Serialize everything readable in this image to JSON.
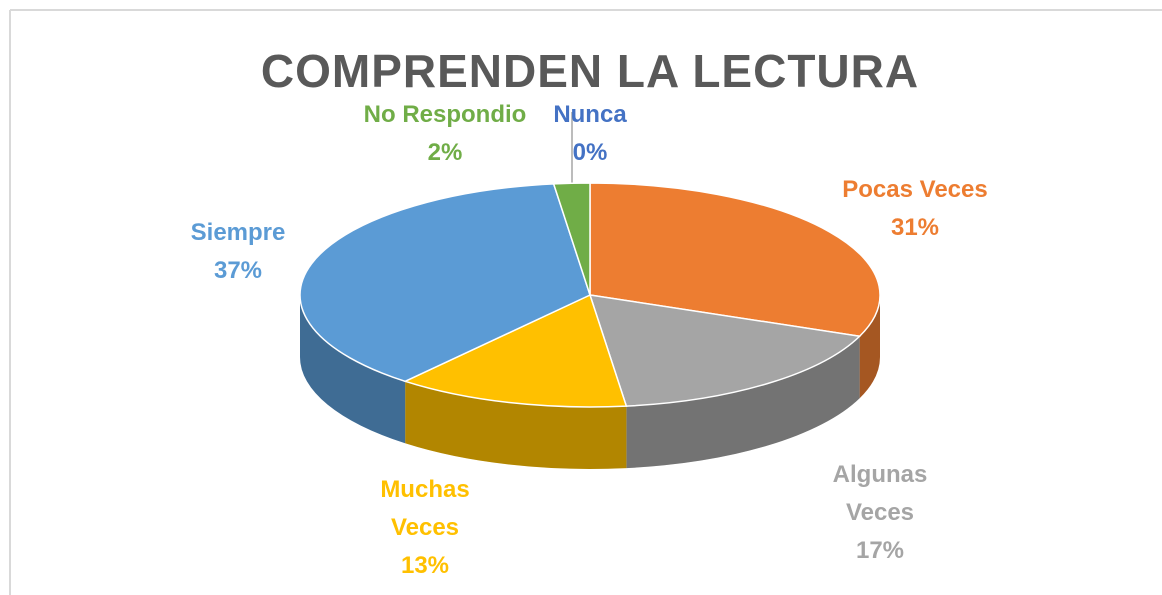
{
  "chart_data": {
    "type": "pie3d",
    "title": "COMPRENDEN LA LECTURA",
    "categories": [
      "Nunca",
      "Pocas Veces",
      "Algunas Veces",
      "Muchas Veces",
      "Siempre",
      "No Respondio"
    ],
    "values": [
      0,
      31,
      17,
      13,
      37,
      2
    ],
    "value_labels": [
      "0%",
      "31%",
      "17%",
      "13%",
      "37%",
      "2%"
    ],
    "colors": [
      "#4472c4",
      "#ed7d31",
      "#a5a5a5",
      "#ffc000",
      "#5b9bd5",
      "#70ad47"
    ]
  }
}
